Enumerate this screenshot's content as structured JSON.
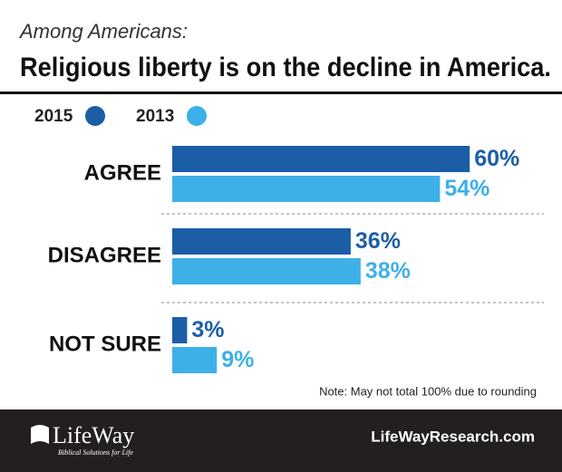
{
  "chart_data": {
    "type": "hbar",
    "subtitle": "Among Americans:",
    "title": "Religious liberty is on the decline in America.",
    "categories": [
      "AGREE",
      "DISAGREE",
      "NOT SURE"
    ],
    "series": [
      {
        "name": "2015",
        "color": "#1b5ea6",
        "values": [
          60,
          36,
          3
        ],
        "value_labels": [
          "60%",
          "36%",
          "3%"
        ]
      },
      {
        "name": "2013",
        "color": "#3db0e8",
        "values": [
          54,
          38,
          9
        ],
        "value_labels": [
          "54%",
          "38%",
          "9%"
        ]
      }
    ],
    "note": "Note: May not total 100% due to rounding"
  },
  "footer": {
    "logo": "LifeWay",
    "tagline": "Biblical Solutions for Life",
    "url": "LifeWayResearch.com"
  }
}
